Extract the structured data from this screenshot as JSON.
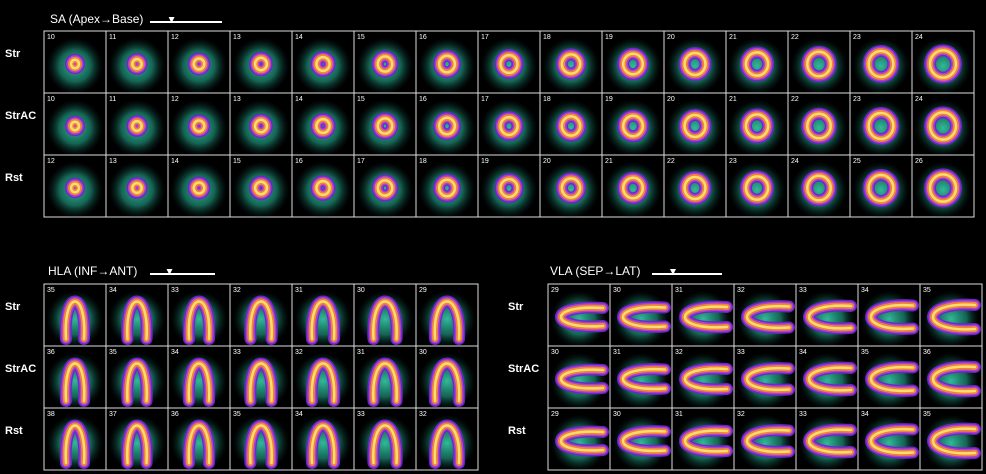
{
  "panels": [
    {
      "title": "SA (Apex→Base)",
      "rows": [
        {
          "label": "Str",
          "slices": [
            10,
            11,
            12,
            13,
            14,
            15,
            16,
            17,
            18,
            19,
            20,
            21,
            22,
            23,
            24
          ]
        },
        {
          "label": "StrAC",
          "slices": [
            10,
            11,
            12,
            13,
            14,
            15,
            16,
            17,
            18,
            19,
            20,
            21,
            22,
            23,
            24
          ]
        },
        {
          "label": "Rst",
          "slices": [
            12,
            13,
            14,
            15,
            16,
            17,
            18,
            19,
            20,
            21,
            22,
            23,
            24,
            25,
            26
          ]
        }
      ]
    },
    {
      "title": "HLA (INF→ANT)",
      "rows": [
        {
          "label": "Str",
          "slices": [
            35,
            34,
            33,
            32,
            31,
            30,
            29
          ]
        },
        {
          "label": "StrAC",
          "slices": [
            36,
            35,
            34,
            33,
            32,
            31,
            30
          ]
        },
        {
          "label": "Rst",
          "slices": [
            38,
            37,
            36,
            35,
            34,
            33,
            32
          ]
        }
      ]
    },
    {
      "title": "VLA (SEP→LAT)",
      "rows": [
        {
          "label": "Str",
          "slices": [
            29,
            30,
            31,
            32,
            33,
            34,
            35
          ]
        },
        {
          "label": "StrAC",
          "slices": [
            30,
            31,
            32,
            33,
            34,
            35,
            36
          ]
        },
        {
          "label": "Rst",
          "slices": [
            29,
            30,
            31,
            32,
            33,
            34,
            35
          ]
        }
      ]
    }
  ]
}
